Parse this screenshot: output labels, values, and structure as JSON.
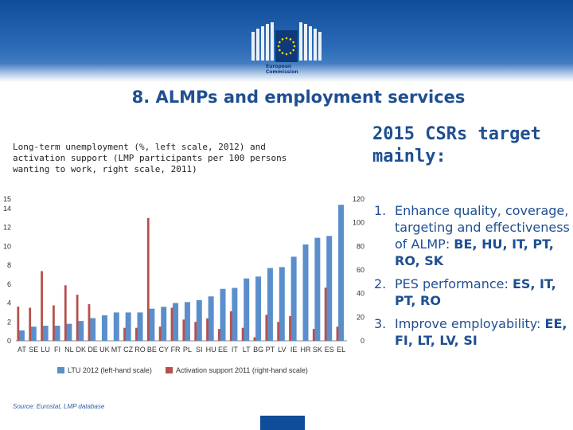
{
  "logo": {
    "text_line1": "European",
    "text_line2": "Commission",
    "colors": {
      "blue": "#0f4c99",
      "stars": "#ffd617"
    }
  },
  "slide_title": "8. ALMPs and employment services",
  "chart_caption": "Long-term unemployment (%, left scale, 2012) and activation support (LMP participants per 100 persons wanting to work, right scale, 2011)",
  "source": "Source: Eurostat, LMP database",
  "right_panel": {
    "heading": "2015 CSRs target mainly:",
    "items": [
      {
        "num": "1.",
        "text": "Enhance quality, coverage, targeting and effectiveness of ALMP: ",
        "countries": "BE, HU, IT, PT, RO, SK"
      },
      {
        "num": "2.",
        "text": "PES performance: ",
        "countries": "ES, IT, PT, RO"
      },
      {
        "num": "3.",
        "text": "Improve employability: ",
        "countries": "EE, FI, LT, LV, SI"
      }
    ]
  },
  "chart_data": {
    "type": "bar",
    "categories": [
      "AT",
      "SE",
      "LU",
      "FI",
      "NL",
      "DK",
      "DE",
      "UK",
      "MT",
      "CZ",
      "RO",
      "BE",
      "CY",
      "FR",
      "PL",
      "SI",
      "HU",
      "EE",
      "IT",
      "LT",
      "BG",
      "PT",
      "LV",
      "IE",
      "HR",
      "SK",
      "ES",
      "EL"
    ],
    "series": [
      {
        "name": "LTU 2012 (left-hand scale)",
        "axis": "left",
        "color": "#5b8fcb",
        "values": [
          1.1,
          1.5,
          1.6,
          1.6,
          1.8,
          2.1,
          2.4,
          2.7,
          3.0,
          3.0,
          3.0,
          3.4,
          3.6,
          4.0,
          4.1,
          4.3,
          4.7,
          5.5,
          5.6,
          6.6,
          6.8,
          7.7,
          7.8,
          8.9,
          10.2,
          10.9,
          11.1,
          14.4
        ]
      },
      {
        "name": "Activation support 2011 (right-hand scale)",
        "axis": "right",
        "color": "#b5514d",
        "values": [
          29,
          28,
          59,
          30,
          47,
          39,
          31,
          0,
          0,
          11,
          11,
          104,
          12,
          28,
          18,
          16,
          19,
          10,
          25,
          11,
          3,
          22,
          16,
          21,
          0,
          10,
          45,
          12
        ]
      }
    ],
    "y_left": {
      "min": 0,
      "max": 15,
      "ticks": [
        0,
        2,
        4,
        6,
        8,
        10,
        12,
        14,
        15
      ]
    },
    "y_right": {
      "min": 0,
      "max": 120,
      "ticks": [
        0,
        20,
        40,
        60,
        80,
        100,
        120
      ]
    },
    "grid": false,
    "legend_position": "bottom"
  }
}
